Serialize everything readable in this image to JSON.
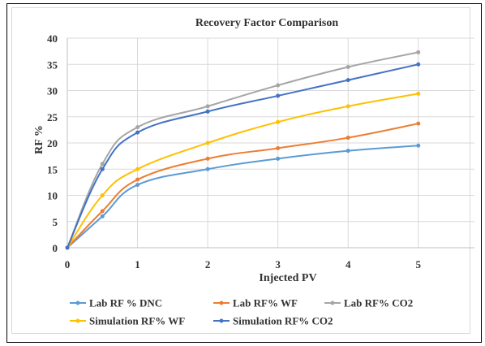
{
  "chart_data": {
    "type": "line",
    "title": "Recovery Factor Comparison",
    "xlabel": "Injected PV",
    "ylabel": "RF %",
    "xlim": [
      0,
      5.8
    ],
    "ylim": [
      0,
      40
    ],
    "xticks": [
      0,
      1,
      2,
      3,
      4,
      5
    ],
    "yticks": [
      0,
      5,
      10,
      15,
      20,
      25,
      30,
      35,
      40
    ],
    "grid": true,
    "legend_position": "bottom",
    "series": [
      {
        "name": "Lab RF % DNC",
        "color": "#5b9bd5",
        "x": [
          0,
          0.5,
          1,
          2,
          3,
          4,
          5
        ],
        "y": [
          0,
          6,
          12,
          15,
          17,
          18.5,
          19.5
        ]
      },
      {
        "name": "Lab RF% WF",
        "color": "#ed7d31",
        "x": [
          0,
          0.5,
          1,
          2,
          3,
          4,
          5
        ],
        "y": [
          0,
          7,
          13,
          17,
          19,
          21,
          23.7
        ]
      },
      {
        "name": "Lab RF% CO2",
        "color": "#a5a5a5",
        "x": [
          0,
          0.5,
          1,
          2,
          3,
          4,
          5
        ],
        "y": [
          0,
          16,
          23,
          27,
          31,
          34.5,
          37.3
        ]
      },
      {
        "name": "Simulation RF% WF",
        "color": "#ffc000",
        "x": [
          0,
          0.5,
          1,
          2,
          3,
          4,
          5
        ],
        "y": [
          0,
          10,
          15,
          20,
          24,
          27,
          29.4
        ]
      },
      {
        "name": "Simulation RF% CO2",
        "color": "#4472c4",
        "x": [
          0,
          0.5,
          1,
          2,
          3,
          4,
          5
        ],
        "y": [
          0,
          15,
          22,
          26,
          29,
          32,
          35
        ]
      }
    ]
  }
}
